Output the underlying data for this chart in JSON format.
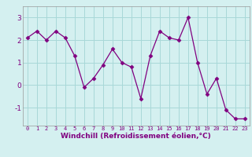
{
  "x": [
    0,
    1,
    2,
    3,
    4,
    5,
    6,
    7,
    8,
    9,
    10,
    11,
    12,
    13,
    14,
    15,
    16,
    17,
    18,
    19,
    20,
    21,
    22,
    23
  ],
  "y": [
    2.1,
    2.4,
    2.0,
    2.4,
    2.1,
    1.3,
    -0.1,
    0.3,
    0.9,
    1.6,
    1.0,
    0.8,
    -0.6,
    1.3,
    2.4,
    2.1,
    2.0,
    3.0,
    1.0,
    -0.4,
    0.3,
    -1.1,
    -1.5,
    -1.5
  ],
  "line_color": "#800080",
  "marker": "D",
  "marker_size": 2.5,
  "bg_color": "#d4f0f0",
  "grid_color": "#a8d8d8",
  "xlabel": "Windchill (Refroidissement éolien,°C)",
  "xlabel_color": "#800080",
  "tick_color": "#800080",
  "yticks": [
    -1,
    0,
    1,
    2,
    3
  ],
  "xticks": [
    0,
    1,
    2,
    3,
    4,
    5,
    6,
    7,
    8,
    9,
    10,
    11,
    12,
    13,
    14,
    15,
    16,
    17,
    18,
    19,
    20,
    21,
    22,
    23
  ],
  "ylim": [
    -1.8,
    3.5
  ],
  "xlim": [
    -0.5,
    23.5
  ],
  "xtick_fontsize": 5.0,
  "ytick_fontsize": 6.5,
  "xlabel_fontsize": 6.5
}
